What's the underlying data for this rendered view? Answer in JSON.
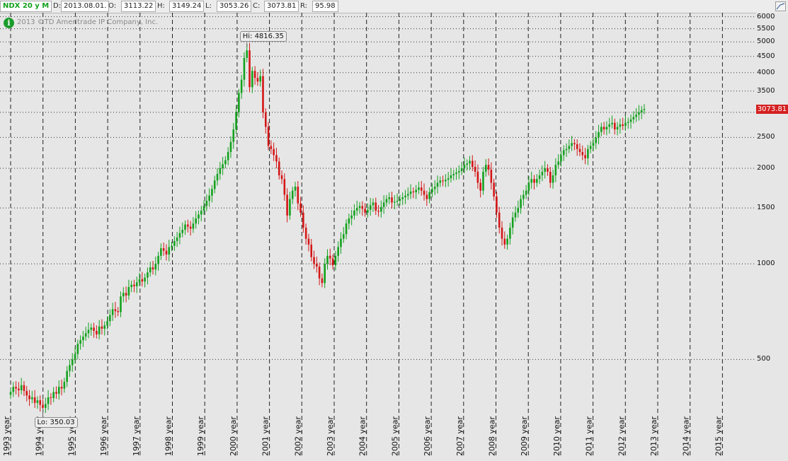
{
  "header": {
    "symbol": "NDX 20 y M",
    "date_label": "D:",
    "date_value": "2013.08.01.",
    "open_label": "O:",
    "open_value": "3113.22",
    "high_label": "H:",
    "high_value": "3149.24",
    "low_label": "L:",
    "low_value": "3053.26",
    "close_label": "C:",
    "close_value": "3073.81",
    "range_label": "R:",
    "range_value": "95.98"
  },
  "copyright": "2013 ©TD Ameritrade IP Company, Inc.",
  "info_icon": "info-icon",
  "current_price_tag": "3073.81",
  "colors": {
    "up": "#13a11d",
    "down": "#d41616",
    "price_tag": "#d42020",
    "grid": "#222222"
  },
  "chart_data": {
    "type": "candlestick",
    "scale": "log",
    "ylim": [
      350,
      6050
    ],
    "y_ticks": [
      500,
      1000,
      1500,
      2000,
      2500,
      3000,
      3500,
      4000,
      4500,
      5000,
      5500,
      6000
    ],
    "x_ticks": [
      "1993 year",
      "1994 year",
      "1995 year",
      "1996 year",
      "1997 year",
      "1998 year",
      "1999 year",
      "2000 year",
      "2001 year",
      "2002 year",
      "2003 year",
      "2004 year",
      "2005 year",
      "2006 year",
      "2007 year",
      "2008 year",
      "2009 year",
      "2010 year",
      "2011 year",
      "2012 year",
      "2013 year",
      "2014 year",
      "2015 year"
    ],
    "hi_label": "Hi: 4816.35",
    "lo_label": "Lo: 350.03",
    "hi_value": 4816.35,
    "lo_value": 350.03,
    "closes": [
      395,
      410,
      405,
      400,
      415,
      398,
      385,
      375,
      380,
      365,
      372,
      360,
      352,
      362,
      380,
      378,
      395,
      390,
      410,
      405,
      425,
      460,
      480,
      500,
      520,
      560,
      575,
      590,
      605,
      620,
      630,
      615,
      600,
      635,
      625,
      640,
      660,
      690,
      720,
      710,
      705,
      790,
      810,
      795,
      845,
      860,
      850,
      875,
      895,
      880,
      905,
      940,
      975,
      960,
      1000,
      1060,
      1120,
      1100,
      1070,
      1130,
      1140,
      1180,
      1210,
      1250,
      1280,
      1330,
      1310,
      1290,
      1340,
      1390,
      1430,
      1470,
      1520,
      1580,
      1640,
      1720,
      1830,
      1920,
      2000,
      2060,
      2120,
      2250,
      2420,
      2650,
      3000,
      3450,
      3800,
      4450,
      4700,
      3600,
      4050,
      3850,
      3750,
      3900,
      3000,
      2700,
      2350,
      2300,
      2200,
      2100,
      1900,
      1850,
      1650,
      1420,
      1600,
      1700,
      1750,
      1550,
      1450,
      1300,
      1200,
      1150,
      1050,
      1000,
      980,
      900,
      870,
      1000,
      1060,
      1040,
      990,
      1060,
      1130,
      1200,
      1240,
      1340,
      1390,
      1420,
      1470,
      1500,
      1520,
      1490,
      1450,
      1480,
      1530,
      1560,
      1470,
      1460,
      1510,
      1560,
      1600,
      1620,
      1560,
      1570,
      1580,
      1600,
      1620,
      1640,
      1660,
      1690,
      1680,
      1710,
      1740,
      1700,
      1650,
      1600,
      1680,
      1720,
      1750,
      1800,
      1830,
      1820,
      1840,
      1860,
      1900,
      1920,
      1940,
      1960,
      2000,
      2050,
      2070,
      2110,
      2020,
      1950,
      1800,
      1700,
      1950,
      2050,
      1980,
      1800,
      1630,
      1450,
      1300,
      1200,
      1150,
      1200,
      1300,
      1400,
      1450,
      1500,
      1600,
      1650,
      1700,
      1800,
      1850,
      1800,
      1850,
      1900,
      1950,
      2000,
      1950,
      1800,
      1900,
      2050,
      2100,
      2200,
      2280,
      2300,
      2350,
      2400,
      2380,
      2300,
      2250,
      2200,
      2150,
      2300,
      2350,
      2400,
      2500,
      2600,
      2700,
      2650,
      2700,
      2750,
      2780,
      2650,
      2700,
      2750,
      2720,
      2780,
      2800,
      2850,
      2900,
      2950,
      3000,
      3050,
      3073.81
    ]
  }
}
